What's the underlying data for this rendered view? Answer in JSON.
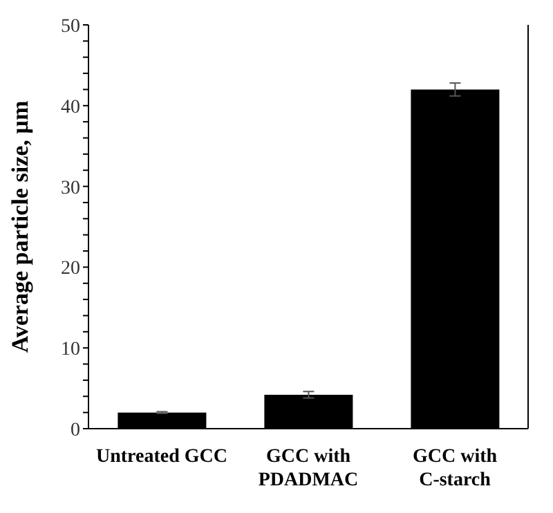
{
  "chart_data": {
    "type": "bar",
    "ylabel": "Average particle size, µm",
    "categories": [
      "Untreated GCC",
      "GCC with PDADMAC",
      "GCC with C-starch"
    ],
    "values": [
      2.0,
      4.2,
      42.0
    ],
    "errors": [
      0.1,
      0.4,
      0.8
    ],
    "color": "#000000",
    "ylim": [
      0,
      50
    ],
    "yticks": [
      0,
      {
        "value": 2,
        "label": null
      },
      {
        "value": 4,
        "label": null
      },
      {
        "value": 6,
        "label": null
      },
      {
        "value": 8,
        "label": null
      },
      10,
      {
        "value": 12,
        "label": null
      },
      {
        "value": 14,
        "label": null
      },
      {
        "value": 16,
        "label": null
      },
      {
        "value": 18,
        "label": null
      },
      20,
      {
        "value": 22,
        "label": null
      },
      {
        "value": 24,
        "label": null
      },
      {
        "value": 26,
        "label": null
      },
      {
        "value": 28,
        "label": null
      },
      30,
      {
        "value": 32,
        "label": null
      },
      {
        "value": 34,
        "label": null
      },
      {
        "value": 36,
        "label": null
      },
      {
        "value": 38,
        "label": null
      },
      40,
      {
        "value": 42,
        "label": null
      },
      {
        "value": 44,
        "label": null
      },
      {
        "value": 46,
        "label": null
      },
      {
        "value": 48,
        "label": null
      },
      50
    ],
    "grid": false,
    "legend": false
  }
}
